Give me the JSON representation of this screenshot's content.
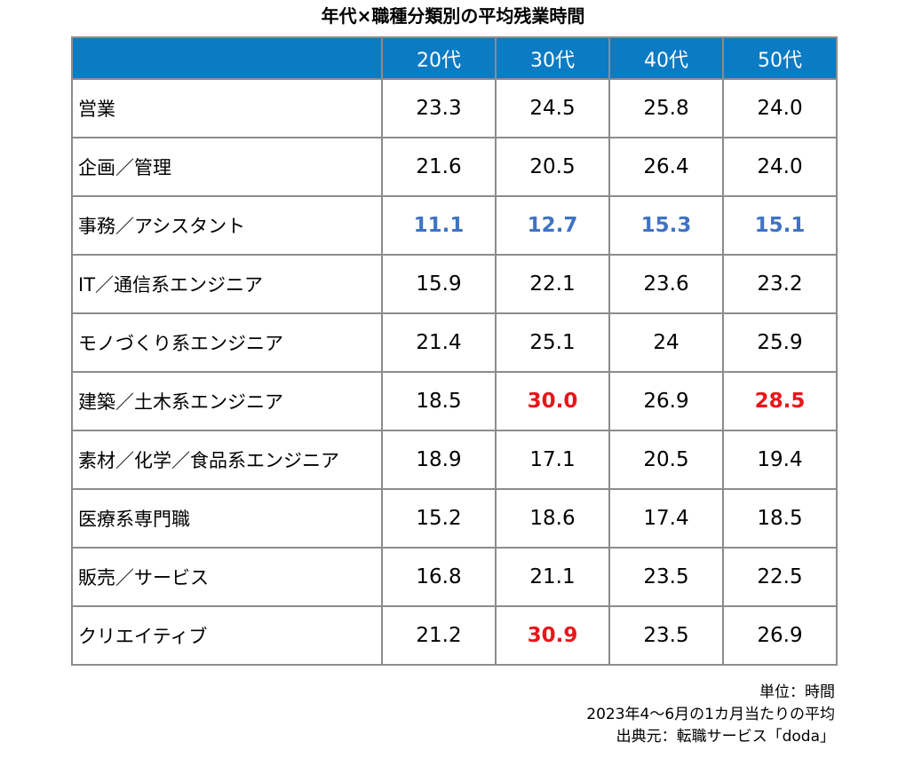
{
  "title": "年代×職種分類別の平均残業時間",
  "notes": {
    "unit": "単位：時間",
    "period": "2023年4～6月の1カ月当たりの平均",
    "source": "出典元：転職サービス「doda」"
  },
  "colors": {
    "header_bg": "#0b7bc4",
    "header_text": "#ffffff",
    "highlight_low": "#3f73c4",
    "highlight_high": "#e8161b",
    "border": "#8c8c8c"
  },
  "chart_data": {
    "type": "table",
    "title": "年代×職種分類別の平均残業時間",
    "columns": [
      "",
      "20代",
      "30代",
      "40代",
      "50代"
    ],
    "rows": [
      {
        "label": "営業",
        "values": [
          "23.3",
          "24.5",
          "25.8",
          "24.0"
        ],
        "highlight": [
          "",
          "",
          "",
          ""
        ]
      },
      {
        "label": "企画／管理",
        "values": [
          "21.6",
          "20.5",
          "26.4",
          "24.0"
        ],
        "highlight": [
          "",
          "",
          "",
          ""
        ]
      },
      {
        "label": "事務／アシスタント",
        "values": [
          "11.1",
          "12.7",
          "15.3",
          "15.1"
        ],
        "highlight": [
          "low",
          "low",
          "low",
          "low"
        ]
      },
      {
        "label": "IT／通信系エンジニア",
        "values": [
          "15.9",
          "22.1",
          "23.6",
          "23.2"
        ],
        "highlight": [
          "",
          "",
          "",
          ""
        ]
      },
      {
        "label": "モノづくり系エンジニア",
        "values": [
          "21.4",
          "25.1",
          "24",
          "25.9"
        ],
        "highlight": [
          "",
          "",
          "",
          ""
        ]
      },
      {
        "label": "建築／土木系エンジニア",
        "values": [
          "18.5",
          "30.0",
          "26.9",
          "28.5"
        ],
        "highlight": [
          "",
          "high",
          "",
          "high"
        ]
      },
      {
        "label": "素材／化学／食品系エンジニア",
        "values": [
          "18.9",
          "17.1",
          "20.5",
          "19.4"
        ],
        "highlight": [
          "",
          "",
          "",
          ""
        ]
      },
      {
        "label": "医療系専門職",
        "values": [
          "15.2",
          "18.6",
          "17.4",
          "18.5"
        ],
        "highlight": [
          "",
          "",
          "",
          ""
        ]
      },
      {
        "label": "販売／サービス",
        "values": [
          "16.8",
          "21.1",
          "23.5",
          "22.5"
        ],
        "highlight": [
          "",
          "",
          "",
          ""
        ]
      },
      {
        "label": "クリエイティブ",
        "values": [
          "21.2",
          "30.9",
          "23.5",
          "26.9"
        ],
        "highlight": [
          "",
          "high",
          "",
          ""
        ]
      }
    ]
  }
}
